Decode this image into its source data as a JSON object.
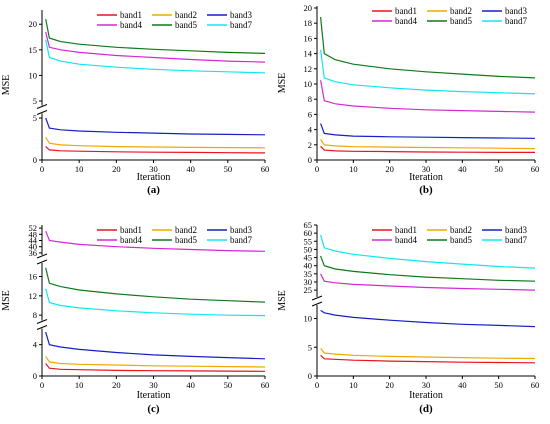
{
  "colors": {
    "band1": "#e8141e",
    "band2": "#f0a800",
    "band3": "#1420c8",
    "band4": "#d22ad2",
    "band5": "#0f7a1c",
    "band7": "#10e6f0"
  },
  "chart_data": [
    {
      "type": "line",
      "panel_label": "(a)",
      "xlabel": "Iteration",
      "ylabel": "MSE",
      "xlim": [
        0,
        60
      ],
      "xticks": [
        "0",
        "10",
        "20",
        "30",
        "40",
        "50",
        "60"
      ],
      "axis_break": true,
      "segments": [
        {
          "range": [
            0,
            5
          ],
          "ticks": [
            "0",
            "5"
          ]
        },
        {
          "range": [
            5,
            22
          ],
          "ticks": [
            "5",
            "10",
            "15",
            "20"
          ]
        }
      ],
      "legend": [
        "band1",
        "band2",
        "band3",
        "band4",
        "band5",
        "band7"
      ],
      "series": [
        {
          "name": "band1",
          "x": [
            1,
            2,
            5,
            10,
            20,
            30,
            40,
            50,
            60
          ],
          "values": [
            1.6,
            1.2,
            1.1,
            1.05,
            0.98,
            0.93,
            0.9,
            0.87,
            0.85
          ]
        },
        {
          "name": "band2",
          "x": [
            1,
            2,
            5,
            10,
            20,
            30,
            40,
            50,
            60
          ],
          "values": [
            2.7,
            2.0,
            1.8,
            1.7,
            1.6,
            1.55,
            1.5,
            1.48,
            1.45
          ]
        },
        {
          "name": "band3",
          "x": [
            1,
            2,
            5,
            10,
            20,
            30,
            40,
            50,
            60
          ],
          "values": [
            5.0,
            3.8,
            3.6,
            3.45,
            3.3,
            3.2,
            3.1,
            3.05,
            3.0
          ]
        },
        {
          "name": "band4",
          "x": [
            1,
            2,
            5,
            10,
            20,
            30,
            40,
            50,
            60
          ],
          "values": [
            18.5,
            15.5,
            15.0,
            14.5,
            13.9,
            13.5,
            13.1,
            12.8,
            12.6
          ]
        },
        {
          "name": "band5",
          "x": [
            1,
            2,
            5,
            10,
            20,
            30,
            40,
            50,
            60
          ],
          "values": [
            21.0,
            17.3,
            16.6,
            16.1,
            15.5,
            15.1,
            14.8,
            14.5,
            14.3
          ]
        },
        {
          "name": "band7",
          "x": [
            1,
            2,
            5,
            10,
            20,
            30,
            40,
            50,
            60
          ],
          "values": [
            17.0,
            13.5,
            12.8,
            12.2,
            11.6,
            11.2,
            10.9,
            10.7,
            10.5
          ]
        }
      ]
    },
    {
      "type": "line",
      "panel_label": "(b)",
      "xlabel": "Iteration",
      "ylabel": "MSE",
      "xlim": [
        0,
        60
      ],
      "xticks": [
        "0",
        "10",
        "20",
        "30",
        "40",
        "50",
        "60"
      ],
      "axis_break": false,
      "segments": [
        {
          "range": [
            0,
            20
          ],
          "ticks": [
            "0",
            "2",
            "4",
            "6",
            "8",
            "10",
            "12",
            "14",
            "16",
            "18",
            "20"
          ]
        }
      ],
      "legend": [
        "band1",
        "band2",
        "band3",
        "band4",
        "band5",
        "band7"
      ],
      "series": [
        {
          "name": "band1",
          "x": [
            1,
            2,
            5,
            10,
            20,
            30,
            40,
            50,
            60
          ],
          "values": [
            1.8,
            1.3,
            1.2,
            1.15,
            1.1,
            1.05,
            1.03,
            1.0,
            1.0
          ]
        },
        {
          "name": "band2",
          "x": [
            1,
            2,
            5,
            10,
            20,
            30,
            40,
            50,
            60
          ],
          "values": [
            2.7,
            2.0,
            1.85,
            1.75,
            1.7,
            1.65,
            1.6,
            1.55,
            1.5
          ]
        },
        {
          "name": "band3",
          "x": [
            1,
            2,
            5,
            10,
            20,
            30,
            40,
            50,
            60
          ],
          "values": [
            4.8,
            3.5,
            3.3,
            3.15,
            3.05,
            3.0,
            2.95,
            2.9,
            2.85
          ]
        },
        {
          "name": "band4",
          "x": [
            1,
            2,
            5,
            10,
            20,
            30,
            40,
            50,
            60
          ],
          "values": [
            10.5,
            7.8,
            7.4,
            7.1,
            6.8,
            6.6,
            6.5,
            6.4,
            6.3
          ]
        },
        {
          "name": "band5",
          "x": [
            1,
            2,
            5,
            10,
            20,
            30,
            40,
            50,
            60
          ],
          "values": [
            18.8,
            14.0,
            13.2,
            12.6,
            12.0,
            11.6,
            11.3,
            11.0,
            10.8
          ]
        },
        {
          "name": "band7",
          "x": [
            1,
            2,
            5,
            10,
            20,
            30,
            40,
            50,
            60
          ],
          "values": [
            14.5,
            10.8,
            10.3,
            9.9,
            9.5,
            9.2,
            9.0,
            8.85,
            8.7
          ]
        }
      ]
    },
    {
      "type": "line",
      "panel_label": "(c)",
      "xlabel": "Iteration",
      "ylabel": "MSE",
      "xlim": [
        0,
        60
      ],
      "xticks": [
        "0",
        "10",
        "20",
        "30",
        "40",
        "50",
        "60"
      ],
      "axis_break": true,
      "segments": [
        {
          "range": [
            0,
            6
          ],
          "ticks": [
            "0",
            "4"
          ]
        },
        {
          "range": [
            7,
            19
          ],
          "ticks": [
            "8",
            "12",
            "16"
          ]
        },
        {
          "range": [
            34,
            54
          ],
          "ticks": [
            "36",
            "40",
            "44",
            "48",
            "52"
          ]
        }
      ],
      "legend": [
        "band1",
        "band2",
        "band3",
        "band4",
        "band5",
        "band7"
      ],
      "series": [
        {
          "name": "band1",
          "x": [
            1,
            2,
            5,
            10,
            20,
            30,
            40,
            50,
            60
          ],
          "values": [
            1.6,
            1.0,
            0.85,
            0.8,
            0.72,
            0.68,
            0.65,
            0.62,
            0.6
          ]
        },
        {
          "name": "band2",
          "x": [
            1,
            2,
            5,
            10,
            20,
            30,
            40,
            50,
            60
          ],
          "values": [
            2.5,
            1.8,
            1.6,
            1.5,
            1.4,
            1.3,
            1.25,
            1.2,
            1.15
          ]
        },
        {
          "name": "band3",
          "x": [
            1,
            2,
            5,
            10,
            20,
            30,
            40,
            50,
            60
          ],
          "values": [
            5.6,
            4.0,
            3.7,
            3.4,
            3.0,
            2.7,
            2.5,
            2.35,
            2.2
          ]
        },
        {
          "name": "band4",
          "x": [
            1,
            2,
            5,
            10,
            20,
            30,
            40,
            50,
            60
          ],
          "values": [
            50,
            44,
            43,
            41.5,
            40,
            39,
            38.2,
            37.5,
            37
          ]
        },
        {
          "name": "band5",
          "x": [
            1,
            2,
            5,
            10,
            20,
            30,
            40,
            50,
            60
          ],
          "values": [
            17.8,
            14.6,
            13.9,
            13.2,
            12.4,
            11.8,
            11.3,
            11.0,
            10.7
          ]
        },
        {
          "name": "band7",
          "x": [
            1,
            2,
            5,
            10,
            20,
            30,
            40,
            50,
            60
          ],
          "values": [
            13.5,
            10.6,
            10.0,
            9.5,
            8.9,
            8.5,
            8.2,
            8.0,
            7.9
          ]
        }
      ]
    },
    {
      "type": "line",
      "panel_label": "(d)",
      "xlabel": "Iteration",
      "ylabel": "MSE",
      "xlim": [
        0,
        60
      ],
      "xticks": [
        "0",
        "10",
        "20",
        "30",
        "40",
        "50",
        "60"
      ],
      "axis_break": true,
      "segments": [
        {
          "range": [
            0,
            12
          ],
          "ticks": [
            "0",
            "5",
            "10"
          ]
        },
        {
          "range": [
            22,
            65
          ],
          "ticks": [
            "25",
            "30",
            "35",
            "40",
            "45",
            "50",
            "55",
            "60",
            "65"
          ]
        }
      ],
      "legend": [
        "band1",
        "band2",
        "band3",
        "band4",
        "band5",
        "band7"
      ],
      "series": [
        {
          "name": "band1",
          "x": [
            1,
            2,
            5,
            10,
            20,
            30,
            40,
            50,
            60
          ],
          "values": [
            3.6,
            3.0,
            2.9,
            2.75,
            2.6,
            2.5,
            2.4,
            2.35,
            2.3
          ]
        },
        {
          "name": "band2",
          "x": [
            1,
            2,
            5,
            10,
            20,
            30,
            40,
            50,
            60
          ],
          "values": [
            4.8,
            4.0,
            3.8,
            3.6,
            3.4,
            3.3,
            3.2,
            3.1,
            3.05
          ]
        },
        {
          "name": "band3",
          "x": [
            1,
            2,
            5,
            10,
            20,
            30,
            40,
            50,
            60
          ],
          "values": [
            11.4,
            11.0,
            10.6,
            10.2,
            9.7,
            9.3,
            9.0,
            8.8,
            8.6
          ]
        },
        {
          "name": "band4",
          "x": [
            1,
            2,
            5,
            10,
            20,
            30,
            40,
            50,
            60
          ],
          "values": [
            35,
            30.5,
            29.5,
            28.5,
            27.5,
            26.6,
            26,
            25.5,
            25
          ]
        },
        {
          "name": "band5",
          "x": [
            1,
            2,
            5,
            10,
            20,
            30,
            40,
            50,
            60
          ],
          "values": [
            46,
            40,
            38,
            36.5,
            34.5,
            33,
            32,
            31,
            30.5
          ]
        },
        {
          "name": "band7",
          "x": [
            1,
            2,
            5,
            10,
            20,
            30,
            40,
            50,
            60
          ],
          "values": [
            59,
            51,
            49,
            47,
            44.5,
            42.5,
            41,
            39.5,
            38.5
          ]
        }
      ]
    }
  ]
}
